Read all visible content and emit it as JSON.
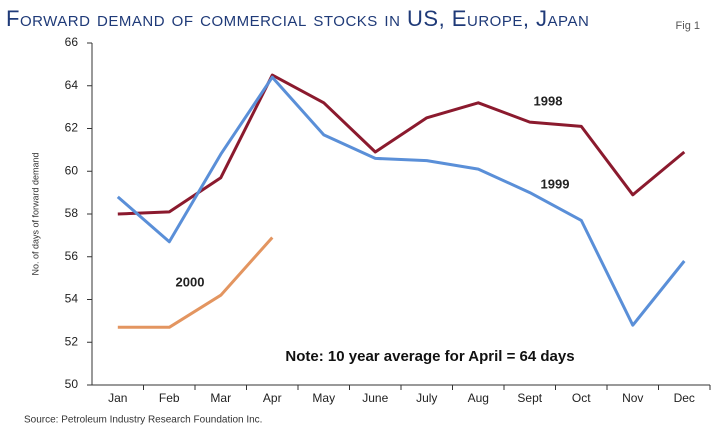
{
  "chart_data": {
    "type": "line",
    "title": "Forward demand of commercial stocks in US, Europe, Japan",
    "figure_label": "Fig 1",
    "y_label": "No. of days of forward demand",
    "source": "Source: Petroleum Industry Research Foundation Inc.",
    "note": "Note: 10 year average for April = 64 days",
    "categories": [
      "Jan",
      "Feb",
      "Mar",
      "Apr",
      "May",
      "June",
      "July",
      "Aug",
      "Sept",
      "Oct",
      "Nov",
      "Dec"
    ],
    "series": [
      {
        "name": "1998",
        "color": "#8b1a2e",
        "values": [
          58.0,
          58.1,
          59.7,
          64.5,
          63.2,
          60.9,
          62.5,
          63.2,
          62.3,
          62.1,
          58.9,
          60.9
        ]
      },
      {
        "name": "1999",
        "color": "#5a8fd8",
        "values": [
          58.8,
          56.7,
          60.8,
          64.4,
          61.7,
          60.6,
          60.5,
          60.1,
          59.0,
          57.7,
          52.8,
          55.8
        ]
      },
      {
        "name": "2000",
        "color": "#e39560",
        "values": [
          52.7,
          52.7,
          54.2,
          56.9,
          null,
          null,
          null,
          null,
          null,
          null,
          null,
          null
        ]
      }
    ],
    "ylim": [
      50,
      66
    ],
    "yticks": [
      50,
      52,
      54,
      56,
      58,
      60,
      62,
      64,
      66
    ]
  }
}
